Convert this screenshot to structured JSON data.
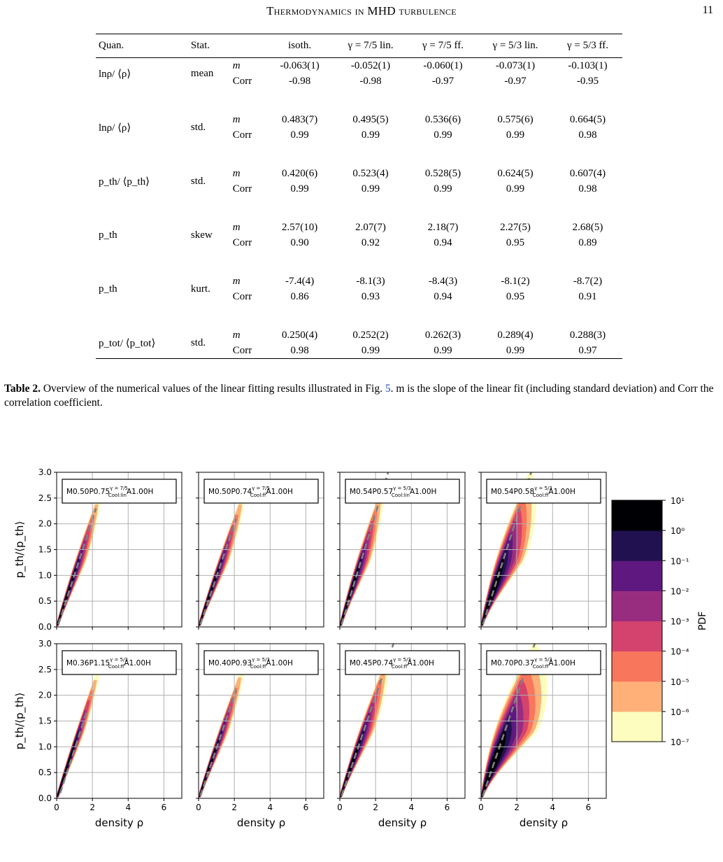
{
  "header": {
    "running_title": "Thermodynamics in MHD turbulence",
    "page_number": "11"
  },
  "table": {
    "columns": [
      "Quan.",
      "Stat.",
      "",
      "isoth.",
      "γ = 7/5 lin.",
      "γ = 7/5 ff.",
      "γ = 5/3 lin.",
      "γ = 5/3 ff."
    ],
    "rows": [
      {
        "quantity": "lnρ/ ⟨ρ⟩",
        "stat": "mean",
        "m_label": "m",
        "corr_label": "Corr",
        "m": [
          "-0.063(1)",
          "-0.052(1)",
          "-0.060(1)",
          "-0.073(1)",
          "-0.103(1)"
        ],
        "corr": [
          "-0.98",
          "-0.98",
          "-0.97",
          "-0.97",
          "-0.95"
        ]
      },
      {
        "quantity": "lnρ/ ⟨ρ⟩",
        "stat": "std.",
        "m_label": "m",
        "corr_label": "Corr",
        "m": [
          "0.483(7)",
          "0.495(5)",
          "0.536(6)",
          "0.575(6)",
          "0.664(5)"
        ],
        "corr": [
          "0.99",
          "0.99",
          "0.99",
          "0.99",
          "0.98"
        ]
      },
      {
        "quantity": "p_th/ ⟨p_th⟩",
        "stat": "std.",
        "m_label": "m",
        "corr_label": "Corr",
        "m": [
          "0.420(6)",
          "0.523(4)",
          "0.528(5)",
          "0.624(5)",
          "0.607(4)"
        ],
        "corr": [
          "0.99",
          "0.99",
          "0.99",
          "0.99",
          "0.98"
        ]
      },
      {
        "quantity": "p_th",
        "stat": "skew",
        "m_label": "m",
        "corr_label": "Corr",
        "m": [
          "2.57(10)",
          "2.07(7)",
          "2.18(7)",
          "2.27(5)",
          "2.68(5)"
        ],
        "corr": [
          "0.90",
          "0.92",
          "0.94",
          "0.95",
          "0.89"
        ]
      },
      {
        "quantity": "p_th",
        "stat": "kurt.",
        "m_label": "m",
        "corr_label": "Corr",
        "m": [
          "-7.4(4)",
          "-8.1(3)",
          "-8.4(3)",
          "-8.1(2)",
          "-8.7(2)"
        ],
        "corr": [
          "0.86",
          "0.93",
          "0.94",
          "0.95",
          "0.91"
        ]
      },
      {
        "quantity": "p_tot/ ⟨p_tot⟩",
        "stat": "std.",
        "m_label": "m",
        "corr_label": "Corr",
        "m": [
          "0.250(4)",
          "0.252(2)",
          "0.262(3)",
          "0.289(4)",
          "0.288(3)"
        ],
        "corr": [
          "0.98",
          "0.99",
          "0.99",
          "0.99",
          "0.97"
        ]
      }
    ]
  },
  "caption": {
    "label": "Table 2.",
    "text_before_ref": "Overview of the numerical values of the linear fitting results illustrated in Fig.",
    "ref": "5",
    "text_after_ref": ". m is the slope of the linear fit (including standard deviation) and Corr the correlation coefficient."
  },
  "figure": {
    "xlabel": "density ρ",
    "ylabel": "p_th/⟨p_th⟩",
    "xticks": [
      "0",
      "2",
      "4",
      "6"
    ],
    "yticks": [
      "0.0",
      "0.5",
      "1.0",
      "1.5",
      "2.0",
      "2.5",
      "3.0"
    ],
    "colorbar_label": "PDF",
    "colorbar_ticks": [
      "10¹",
      "10⁰",
      "10⁻¹",
      "10⁻²",
      "10⁻³",
      "10⁻⁴",
      "10⁻⁵",
      "10⁻⁶",
      "10⁻⁷"
    ],
    "colormap": [
      "#fcfdbf",
      "#feb078",
      "#f8765c",
      "#d3436e",
      "#982d80",
      "#5f187f",
      "#221150",
      "#000004"
    ],
    "fit_line_color": "#808080"
  },
  "chart_data": [
    {
      "type": "heatmap",
      "panel_label": {
        "prefix": "M0.50P0.75",
        "sup": "γ = 7/5",
        "sub": "Cool:lin",
        "suffix": "A1.00H"
      },
      "xlim": [
        0,
        7
      ],
      "ylim": [
        0,
        3.0
      ],
      "spread": 0.8,
      "fit_line": {
        "x": [
          0.1,
          2.2
        ],
        "y": [
          0.05,
          2.3
        ]
      }
    },
    {
      "type": "heatmap",
      "panel_label": {
        "prefix": "M0.50P0.74",
        "sup": "γ = 7/5",
        "sub": "Cool:ff",
        "suffix": "A1.00H"
      },
      "xlim": [
        0,
        7
      ],
      "ylim": [
        0,
        3.0
      ],
      "spread": 0.8,
      "fit_line": {
        "x": [
          0.1,
          2.1
        ],
        "y": [
          0.05,
          2.1
        ]
      }
    },
    {
      "type": "heatmap",
      "panel_label": {
        "prefix": "M0.54P0.57",
        "sup": "γ = 5/3",
        "sub": "Cool:lin",
        "suffix": "A1.00H"
      },
      "xlim": [
        0,
        7
      ],
      "ylim": [
        0,
        3.0
      ],
      "spread": 1.1,
      "fit_line": {
        "x": [
          0.1,
          2.7
        ],
        "y": [
          0.05,
          3.0
        ]
      }
    },
    {
      "type": "heatmap",
      "panel_label": {
        "prefix": "M0.54P0.58",
        "sup": "γ = 5/3",
        "sub": "Cool:ff",
        "suffix": "A1.00H"
      },
      "xlim": [
        0,
        7
      ],
      "ylim": [
        0,
        3.0
      ],
      "spread": 2.6,
      "fit_line": {
        "x": [
          0.1,
          2.8
        ],
        "y": [
          0.05,
          3.0
        ]
      }
    },
    {
      "type": "heatmap",
      "panel_label": {
        "prefix": "M0.36P1.15",
        "sup": "γ = 5/3",
        "sub": "Cool:ff",
        "suffix": "A1.00H"
      },
      "xlim": [
        0,
        7
      ],
      "ylim": [
        0,
        3.0
      ],
      "spread": 0.55,
      "fit_line": {
        "x": [
          0.2,
          1.7
        ],
        "y": [
          0.1,
          1.7
        ]
      }
    },
    {
      "type": "heatmap",
      "panel_label": {
        "prefix": "M0.40P0.93",
        "sup": "γ = 5/3",
        "sub": "Cool:ff",
        "suffix": "A1.00H"
      },
      "xlim": [
        0,
        7
      ],
      "ylim": [
        0,
        3.0
      ],
      "spread": 0.7,
      "fit_line": {
        "x": [
          0.1,
          2.1
        ],
        "y": [
          0.05,
          2.1
        ]
      }
    },
    {
      "type": "heatmap",
      "panel_label": {
        "prefix": "M0.45P0.74",
        "sup": "γ = 5/3",
        "sub": "Cool:ff",
        "suffix": "A1.00H"
      },
      "xlim": [
        0,
        7
      ],
      "ylim": [
        0,
        3.0
      ],
      "spread": 1.2,
      "fit_line": {
        "x": [
          0.1,
          3.0
        ],
        "y": [
          0.05,
          3.0
        ]
      }
    },
    {
      "type": "heatmap",
      "panel_label": {
        "prefix": "M0.70P0.37",
        "sup": "γ = 5/3",
        "sub": "Cool:ff",
        "suffix": "A1.00H"
      },
      "xlim": [
        0,
        7
      ],
      "ylim": [
        0,
        3.0
      ],
      "spread": 4.0,
      "fit_line": {
        "x": [
          0.1,
          3.0
        ],
        "y": [
          0.05,
          3.0
        ]
      }
    }
  ]
}
